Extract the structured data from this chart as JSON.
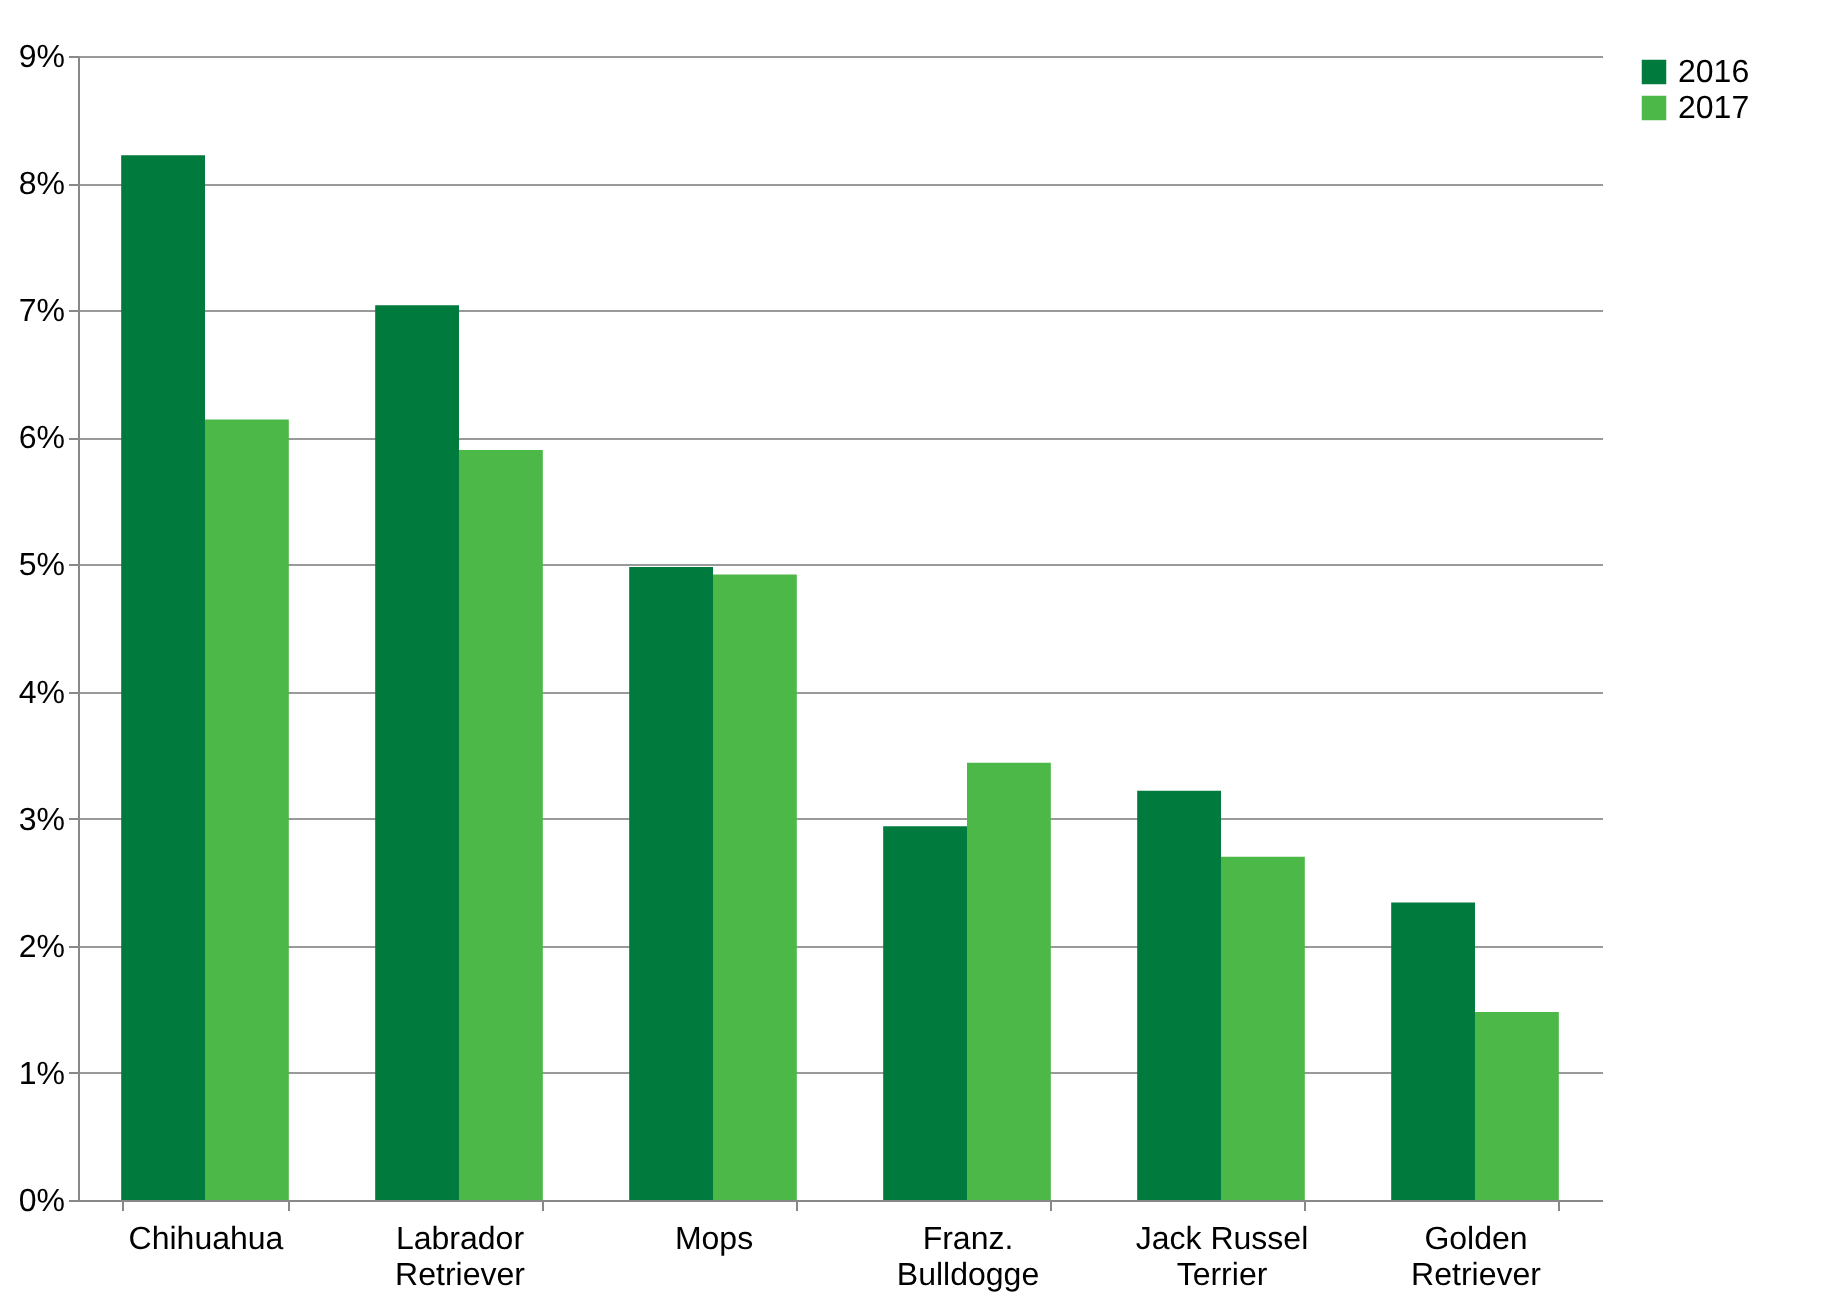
{
  "chart_data": {
    "type": "bar",
    "categories": [
      "Chihuahua",
      "Labrador Retriever",
      "Mops",
      "Franz. Bulldogge",
      "Jack Russel Terrier",
      "Golden Retriever"
    ],
    "series": [
      {
        "name": "2016",
        "color": "#007a3d",
        "values": [
          8.22,
          7.04,
          4.98,
          2.94,
          3.22,
          2.34
        ]
      },
      {
        "name": "2017",
        "color": "#4cb848",
        "values": [
          6.14,
          5.9,
          4.92,
          3.44,
          2.7,
          1.48
        ]
      }
    ],
    "ylim": [
      0,
      9
    ],
    "yticks": [
      {
        "value": 0,
        "label": "0%"
      },
      {
        "value": 1,
        "label": "1%"
      },
      {
        "value": 2,
        "label": "2%"
      },
      {
        "value": 3,
        "label": "3%"
      },
      {
        "value": 4,
        "label": "4%"
      },
      {
        "value": 5,
        "label": "5%"
      },
      {
        "value": 6,
        "label": "6%"
      },
      {
        "value": 7,
        "label": "7%"
      },
      {
        "value": 8,
        "label": "8%"
      },
      {
        "value": 9,
        "label": "9%"
      }
    ],
    "grid": "y",
    "legend": "right"
  }
}
